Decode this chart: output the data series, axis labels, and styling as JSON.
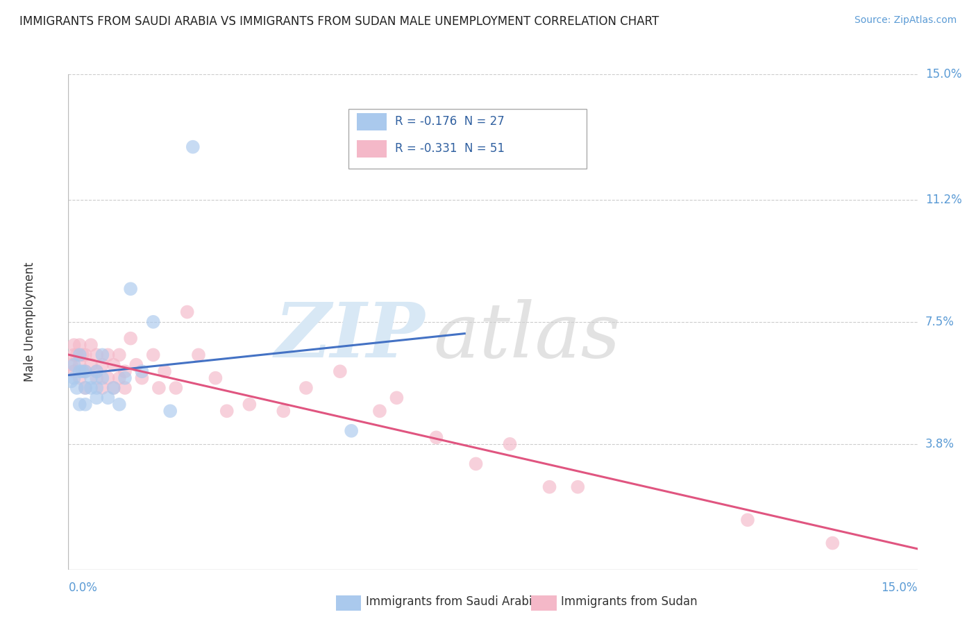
{
  "title": "IMMIGRANTS FROM SAUDI ARABIA VS IMMIGRANTS FROM SUDAN MALE UNEMPLOYMENT CORRELATION CHART",
  "source": "Source: ZipAtlas.com",
  "ylabel": "Male Unemployment",
  "x_min": 0.0,
  "x_max": 0.15,
  "y_min": 0.0,
  "y_max": 0.15,
  "y_ticks": [
    0.038,
    0.075,
    0.112,
    0.15
  ],
  "y_tick_labels": [
    "3.8%",
    "7.5%",
    "11.2%",
    "15.0%"
  ],
  "legend_entries": [
    {
      "label": "R = -0.176  N = 27",
      "color": "#aac9ed"
    },
    {
      "label": "R = -0.331  N = 51",
      "color": "#f4b8c8"
    }
  ],
  "bottom_legend": [
    {
      "label": "Immigrants from Saudi Arabia",
      "color": "#aac9ed"
    },
    {
      "label": "Immigrants from Sudan",
      "color": "#f4b8c8"
    }
  ],
  "saudi_x": [
    0.0005,
    0.001,
    0.001,
    0.0015,
    0.002,
    0.002,
    0.002,
    0.0025,
    0.003,
    0.003,
    0.003,
    0.004,
    0.004,
    0.005,
    0.005,
    0.005,
    0.006,
    0.006,
    0.007,
    0.008,
    0.009,
    0.01,
    0.011,
    0.013,
    0.015,
    0.018,
    0.05
  ],
  "saudi_y": [
    0.057,
    0.062,
    0.058,
    0.055,
    0.06,
    0.05,
    0.065,
    0.06,
    0.055,
    0.06,
    0.05,
    0.055,
    0.058,
    0.052,
    0.06,
    0.055,
    0.065,
    0.058,
    0.052,
    0.055,
    0.05,
    0.058,
    0.085,
    0.06,
    0.075,
    0.048,
    0.042
  ],
  "saudi_outlier_x": [
    0.022
  ],
  "saudi_outlier_y": [
    0.128
  ],
  "sudan_x": [
    0.0005,
    0.001,
    0.001,
    0.001,
    0.0015,
    0.002,
    0.002,
    0.002,
    0.0025,
    0.003,
    0.003,
    0.003,
    0.004,
    0.004,
    0.005,
    0.005,
    0.005,
    0.006,
    0.006,
    0.007,
    0.007,
    0.008,
    0.008,
    0.009,
    0.009,
    0.01,
    0.01,
    0.011,
    0.012,
    0.013,
    0.015,
    0.016,
    0.017,
    0.019,
    0.021,
    0.023,
    0.026,
    0.028,
    0.032,
    0.038,
    0.042,
    0.048,
    0.055,
    0.058,
    0.065,
    0.072,
    0.078,
    0.085,
    0.09,
    0.12,
    0.135
  ],
  "sudan_y": [
    0.062,
    0.065,
    0.068,
    0.06,
    0.065,
    0.062,
    0.068,
    0.058,
    0.065,
    0.06,
    0.065,
    0.055,
    0.062,
    0.068,
    0.06,
    0.065,
    0.058,
    0.062,
    0.055,
    0.058,
    0.065,
    0.055,
    0.062,
    0.058,
    0.065,
    0.055,
    0.06,
    0.07,
    0.062,
    0.058,
    0.065,
    0.055,
    0.06,
    0.055,
    0.078,
    0.065,
    0.058,
    0.048,
    0.05,
    0.048,
    0.055,
    0.06,
    0.048,
    0.052,
    0.04,
    0.032,
    0.038,
    0.025,
    0.025,
    0.015,
    0.008
  ],
  "blue_color": "#aac9ed",
  "pink_color": "#f4b8c8",
  "trend_blue_color": "#4472c4",
  "trend_pink_color": "#e05580",
  "grid_color": "#cccccc",
  "background_color": "#ffffff",
  "title_fontsize": 12,
  "tick_label_color": "#5b9bd5",
  "watermark_zip_color": "#d8e8f5",
  "watermark_atlas_color": "#d0d0d0",
  "watermark_fontsize": 80
}
